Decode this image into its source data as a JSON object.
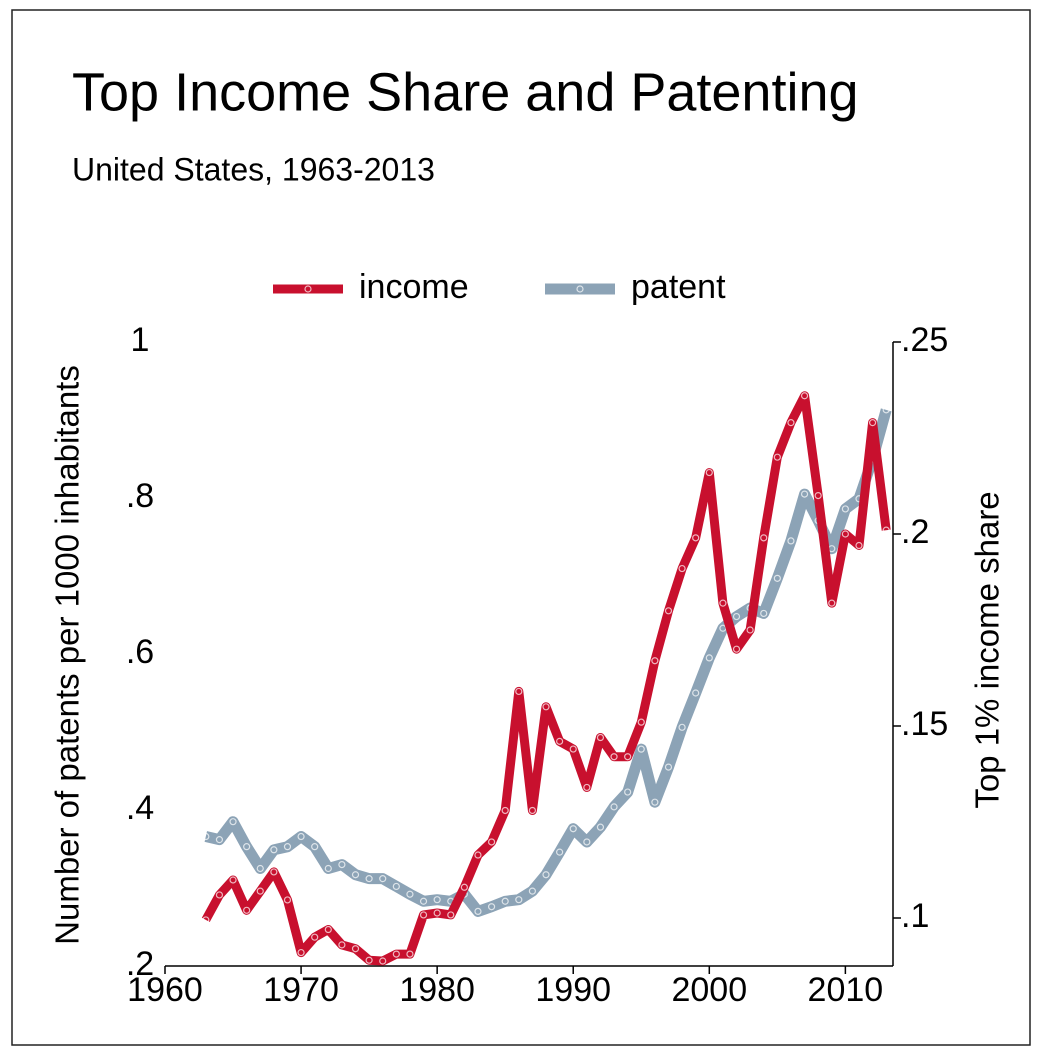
{
  "chart_data": {
    "type": "line",
    "title": "Top Income Share and Patenting",
    "subtitle": "United States, 1963-2013",
    "y_label": "Number of patents per 1000 inhabitants",
    "y2_label": "Top 1% income share",
    "x": [
      1963,
      1964,
      1965,
      1966,
      1967,
      1968,
      1969,
      1970,
      1971,
      1972,
      1973,
      1974,
      1975,
      1976,
      1977,
      1978,
      1979,
      1980,
      1981,
      1982,
      1983,
      1984,
      1985,
      1986,
      1987,
      1988,
      1989,
      1990,
      1991,
      1992,
      1993,
      1994,
      1995,
      1996,
      1997,
      1998,
      1999,
      2000,
      2001,
      2002,
      2003,
      2004,
      2005,
      2006,
      2007,
      2008,
      2009,
      2010,
      2011,
      2012,
      2013
    ],
    "series": [
      {
        "name": "income",
        "color": "#c8102e",
        "axis": "y2",
        "values": [
          0.0995,
          0.106,
          0.1099,
          0.102,
          0.107,
          0.112,
          0.1047,
          0.091,
          0.095,
          0.097,
          0.093,
          0.092,
          0.089,
          0.0888,
          0.0906,
          0.0906,
          0.1008,
          0.1013,
          0.1008,
          0.108,
          0.1164,
          0.1198,
          0.128,
          0.159,
          0.128,
          0.155,
          0.146,
          0.144,
          0.134,
          0.147,
          0.142,
          0.142,
          0.151,
          0.167,
          0.18,
          0.191,
          0.199,
          0.216,
          0.182,
          0.17,
          0.175,
          0.199,
          0.22,
          0.229,
          0.236,
          0.21,
          0.182,
          0.2,
          0.197,
          0.229,
          0.201
        ]
      },
      {
        "name": "patent",
        "color": "#8ca3b6",
        "values": [
          0.366,
          0.362,
          0.385,
          0.353,
          0.325,
          0.349,
          0.353,
          0.366,
          0.353,
          0.325,
          0.33,
          0.317,
          0.312,
          0.312,
          0.302,
          0.292,
          0.283,
          0.285,
          0.283,
          0.292,
          0.27,
          0.276,
          0.283,
          0.285,
          0.296,
          0.317,
          0.346,
          0.376,
          0.359,
          0.378,
          0.404,
          0.423,
          0.478,
          0.41,
          0.455,
          0.506,
          0.55,
          0.595,
          0.633,
          0.648,
          0.659,
          0.652,
          0.697,
          0.745,
          0.805,
          0.771,
          0.735,
          0.786,
          0.799,
          0.85,
          0.913
        ]
      }
    ],
    "xlim": [
      1960,
      2013.5
    ],
    "xticks": [
      1960,
      1970,
      1980,
      1990,
      2000,
      2010
    ],
    "ylim": [
      0.2,
      1
    ],
    "yticks": [
      {
        "value": 0.2,
        "label": ".2"
      },
      {
        "value": 0.4,
        "label": ".4"
      },
      {
        "value": 0.6,
        "label": ".6"
      },
      {
        "value": 0.8,
        "label": ".8"
      },
      1
    ],
    "y2lim": [
      0.0875,
      0.25
    ],
    "y2ticks": [
      {
        "value": 0.1,
        "label": ".1"
      },
      {
        "value": 0.15,
        "label": ".15"
      },
      {
        "value": 0.2,
        "label": ".2"
      },
      {
        "value": 0.25,
        "label": ".25"
      }
    ],
    "grid": false,
    "legend": "top"
  }
}
